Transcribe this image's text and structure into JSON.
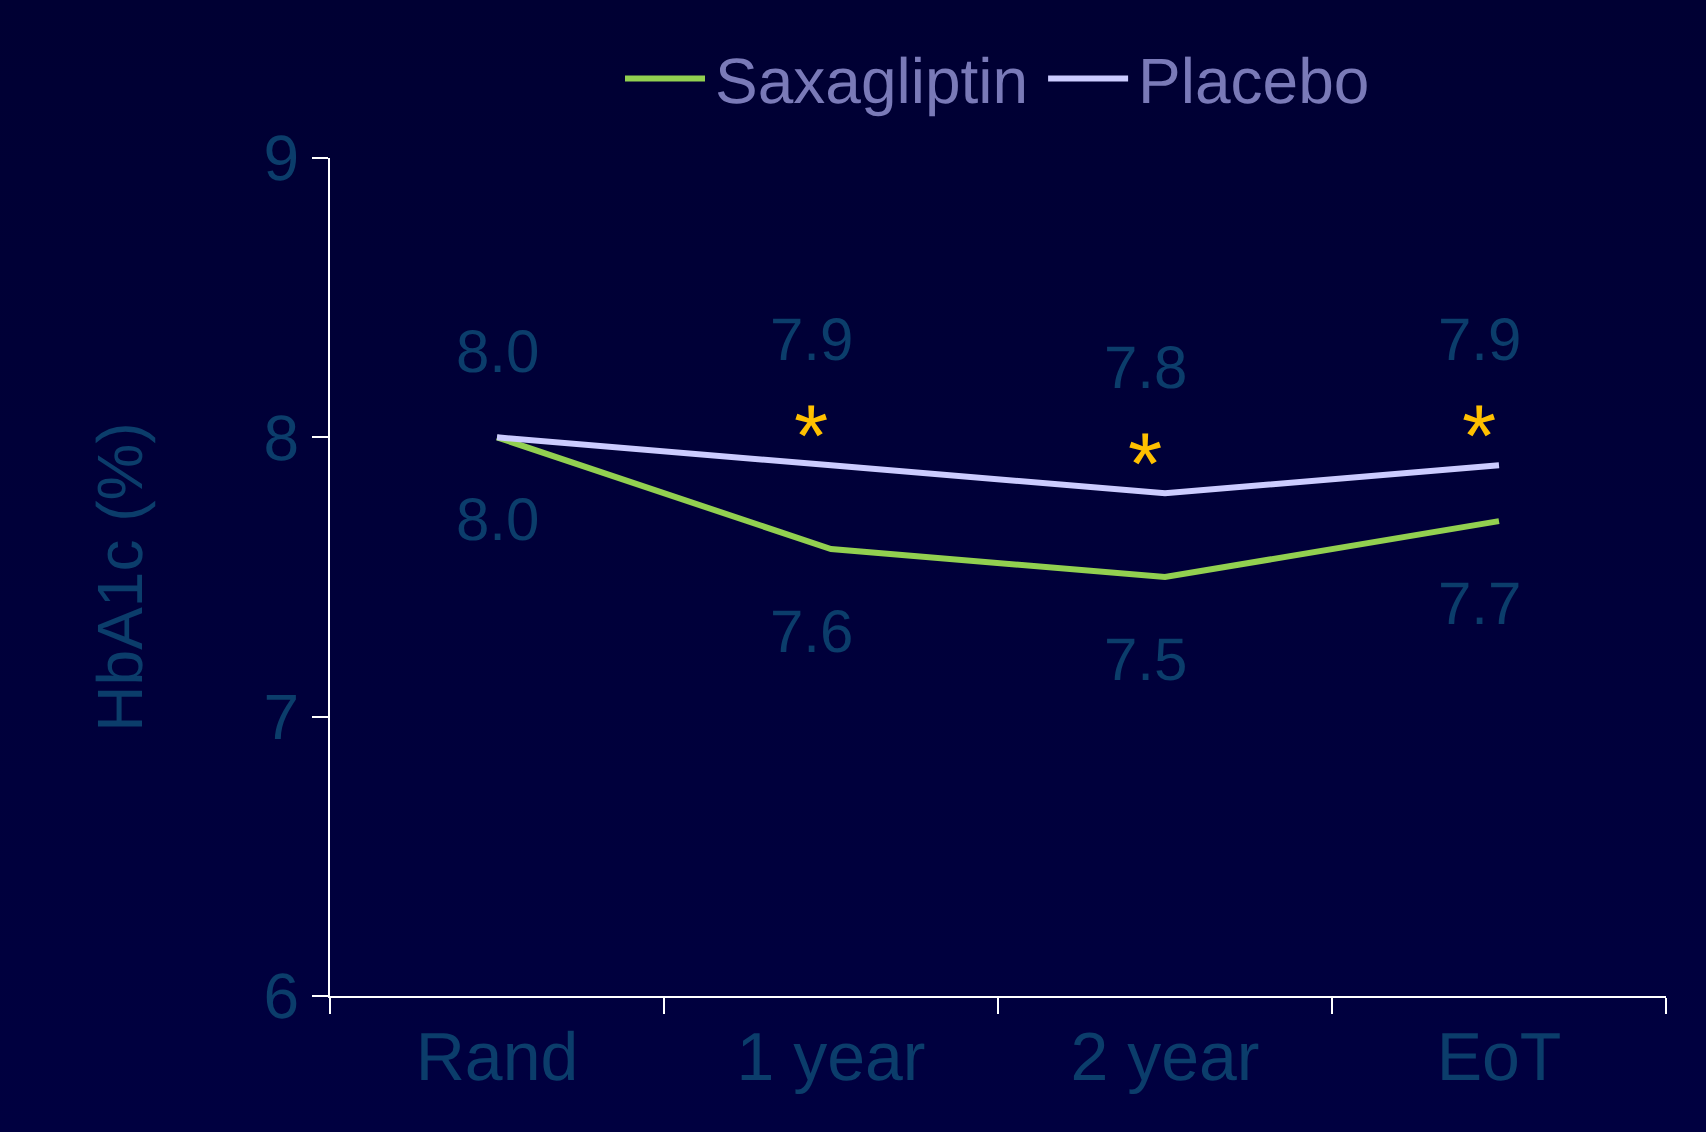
{
  "chart_data": {
    "type": "line",
    "ylabel": "HbA1c (%)",
    "categories": [
      "Rand",
      "1 year",
      "2 year",
      "EoT"
    ],
    "series": [
      {
        "name": "Saxagliptin",
        "color": "#92d050",
        "values": [
          8.0,
          7.6,
          7.5,
          7.7
        ],
        "value_labels": [
          "8.0",
          "7.6",
          "7.5",
          "7.7"
        ]
      },
      {
        "name": "Placebo",
        "color": "#ccccff",
        "values": [
          8.0,
          7.9,
          7.8,
          7.9
        ],
        "value_labels": [
          "8.0",
          "7.9",
          "7.8",
          "7.9"
        ]
      }
    ],
    "ylim": [
      6,
      9
    ],
    "yticks": [
      6,
      7,
      8,
      9
    ],
    "grid": false,
    "legend": "top",
    "marker": "none",
    "line_style": "solid",
    "annotations": [
      "*",
      "*",
      "*"
    ]
  }
}
